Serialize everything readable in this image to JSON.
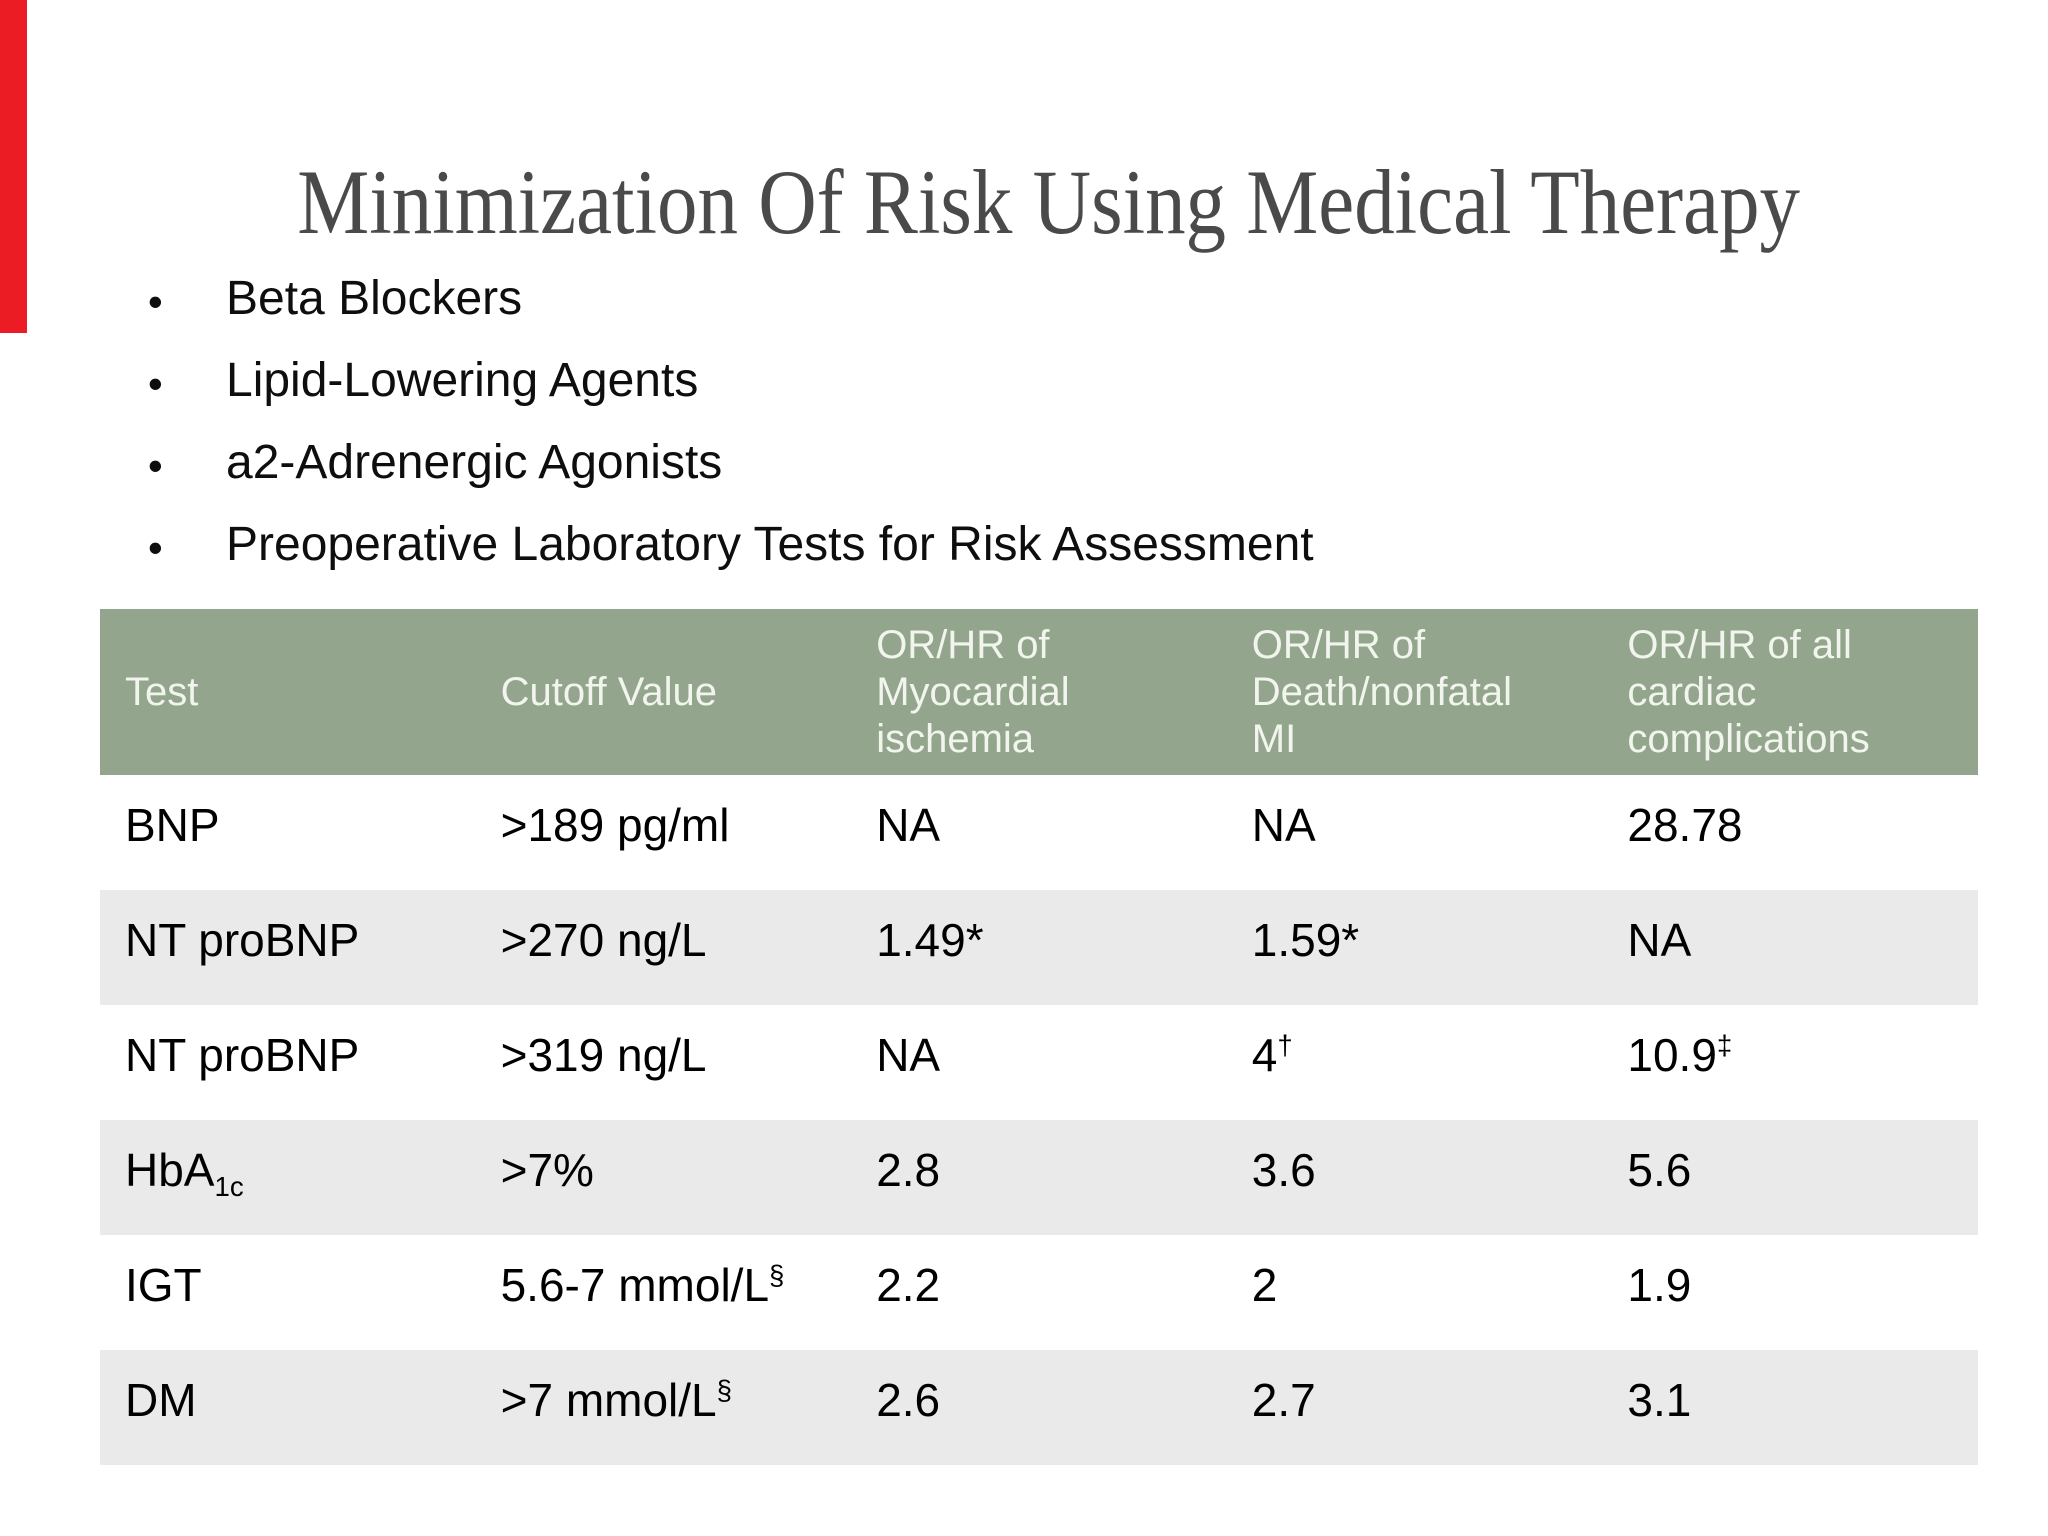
{
  "slide": {
    "title": "Minimization Of Risk Using Medical Therapy",
    "bullets": [
      "Beta Blockers",
      "Lipid-Lowering Agents",
      "a2-Adrenergic Agonists",
      "Preoperative Laboratory Tests for Risk Assessment"
    ],
    "bullet_marker": "•"
  },
  "table": {
    "columns": [
      "Test",
      "Cutoff Value",
      "OR/HR of\nMyocardial\nischemia",
      "OR/HR of\nDeath/nonfatal\nMI",
      "OR/HR of all\ncardiac\ncomplications"
    ],
    "rows": [
      [
        "BNP",
        ">189 pg/ml",
        "NA",
        "NA",
        "28.78"
      ],
      [
        "NT proBNP",
        ">270 ng/L",
        "1.49*",
        "1.59*",
        "NA"
      ],
      [
        "NT proBNP",
        ">319 ng/L",
        "NA",
        "4^{†}",
        "10.9^{‡}"
      ],
      [
        "HbA_{1c}",
        ">7%",
        "2.8",
        "3.6",
        "5.6"
      ],
      [
        "IGT",
        "5.6-7 mmol/L^{§}",
        "2.2",
        "2",
        "1.9"
      ],
      [
        "DM",
        ">7 mmol/L^{§}",
        "2.6",
        "2.7",
        "3.1"
      ]
    ]
  },
  "colors": {
    "header_background": "#93a58c",
    "header_text": "#f2f5ee",
    "zebra_row": "#e9eae9",
    "title_text": "#4a4a4a",
    "body_text": "#000000",
    "accent_bar": "#ec1c24",
    "page_background": "#ffffff"
  }
}
